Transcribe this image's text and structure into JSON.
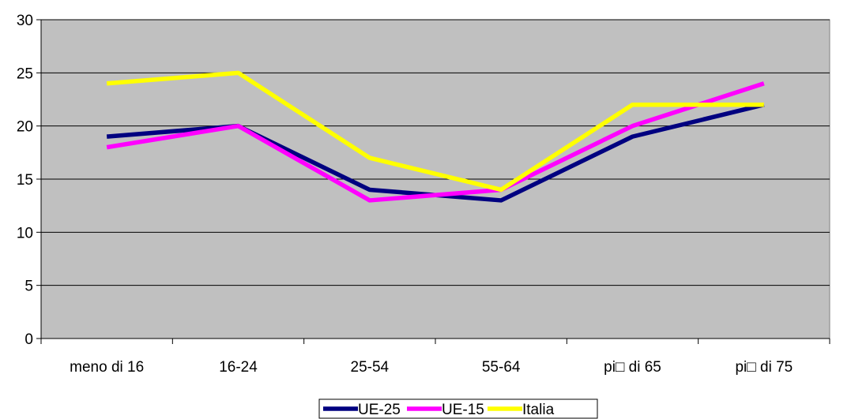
{
  "chart_data": {
    "type": "line",
    "categories": [
      "meno di 16",
      "16-24",
      "25-54",
      "55-64",
      "pi□ di 65",
      "pi□ di 75"
    ],
    "series": [
      {
        "name": "UE-25",
        "values": [
          19,
          20,
          14,
          13,
          19,
          22
        ],
        "color": "#000080"
      },
      {
        "name": "UE-15",
        "values": [
          18,
          20,
          13,
          14,
          20,
          24
        ],
        "color": "#FF00FF"
      },
      {
        "name": "Italia",
        "values": [
          24,
          25,
          17,
          14,
          22,
          22
        ],
        "color": "#FFFF00"
      }
    ],
    "ylim": [
      0,
      30
    ],
    "yticks": [
      0,
      5,
      10,
      15,
      20,
      25,
      30
    ],
    "grid": true,
    "legend_position": "bottom-center",
    "plot_background": "#C0C0C0",
    "grid_color": "#000000"
  }
}
